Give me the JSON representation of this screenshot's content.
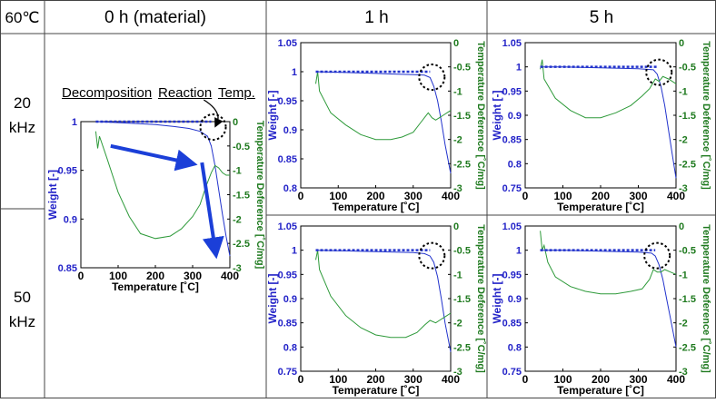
{
  "header": {
    "corner": "60℃",
    "columns": [
      "0 h (material)",
      "1 h",
      "5 h"
    ]
  },
  "rows": [
    {
      "line1": "20",
      "line2": "kHz"
    },
    {
      "line1": "50",
      "line2": "kHz"
    }
  ],
  "annotation": {
    "words": [
      "Decomposition",
      "Reaction",
      "Temp."
    ]
  },
  "colors": {
    "weight_series": "#2233cc",
    "weight_axis": "#2323c8",
    "temp_diff_series": "#2e9a3a",
    "temp_diff_axis": "#1f7a1f",
    "arrow": "#1b3fd8"
  },
  "chart_data": [
    {
      "panel": "0 h (material)",
      "type": "line",
      "xlabel": "Temperature [˚C]",
      "ylabel": "Weight [-]",
      "y2label": "Temperature Deference [˚C/mg]",
      "xlim": [
        0,
        400
      ],
      "ylim": [
        0.85,
        1.0
      ],
      "y2lim": [
        -3,
        0
      ],
      "xticks": [
        "0",
        "100",
        "200",
        "300",
        "400"
      ],
      "yticks": [
        "0.85",
        "0.9",
        "0.95",
        "1"
      ],
      "y2ticks": [
        "0",
        "-0.5",
        "-1",
        "-1.5",
        "-2",
        "-2.5",
        "-3"
      ],
      "onset_temp": 350,
      "series": [
        {
          "axis": "left",
          "x": [
            40,
            100,
            150,
            200,
            250,
            290,
            320,
            340,
            350,
            360,
            370,
            380,
            390,
            400
          ],
          "values": [
            1.0,
            0.999,
            0.998,
            0.997,
            0.995,
            0.993,
            0.99,
            0.985,
            0.975,
            0.955,
            0.93,
            0.905,
            0.882,
            0.862
          ]
        },
        {
          "axis": "right",
          "x": [
            40,
            45,
            50,
            70,
            100,
            130,
            160,
            200,
            240,
            270,
            300,
            320,
            335,
            350,
            360,
            370,
            380,
            390,
            400
          ],
          "values": [
            -0.2,
            -0.55,
            -0.3,
            -0.75,
            -1.45,
            -1.95,
            -2.3,
            -2.4,
            -2.35,
            -2.2,
            -1.95,
            -1.7,
            -1.35,
            -1.05,
            -0.9,
            -0.95,
            -1.05,
            -1.1,
            -1.1
          ]
        }
      ]
    },
    {
      "panel": "1 h, 20 kHz",
      "type": "line",
      "xlabel": "Temperature [˚C]",
      "ylabel": "Weight [-]",
      "y2label": "Temperature Deference [˚C/mg]",
      "xlim": [
        0,
        400
      ],
      "ylim": [
        0.8,
        1.05
      ],
      "y2lim": [
        -3,
        0
      ],
      "xticks": [
        "0",
        "100",
        "200",
        "300",
        "400"
      ],
      "yticks": [
        "0.8",
        "0.85",
        "0.9",
        "0.95",
        "1",
        "1.05"
      ],
      "y2ticks": [
        "0",
        "-0.5",
        "-1",
        "-1.5",
        "-2",
        "-2.5",
        "-3"
      ],
      "onset_temp": 345,
      "series": [
        {
          "axis": "left",
          "x": [
            40,
            100,
            150,
            200,
            250,
            300,
            330,
            345,
            355,
            365,
            375,
            385,
            400
          ],
          "values": [
            1.0,
            0.999,
            0.998,
            0.997,
            0.996,
            0.995,
            0.994,
            0.99,
            0.975,
            0.95,
            0.915,
            0.875,
            0.825
          ]
        },
        {
          "axis": "right",
          "x": [
            40,
            45,
            50,
            80,
            120,
            160,
            200,
            240,
            270,
            300,
            320,
            330,
            340,
            350,
            360,
            370,
            380,
            390,
            400
          ],
          "values": [
            -0.85,
            -0.6,
            -1.0,
            -1.45,
            -1.7,
            -1.9,
            -2.0,
            -2.0,
            -1.95,
            -1.85,
            -1.65,
            -1.55,
            -1.45,
            -1.55,
            -1.6,
            -1.55,
            -1.5,
            -1.45,
            -1.4
          ]
        }
      ]
    },
    {
      "panel": "5 h, 20 kHz",
      "type": "line",
      "xlabel": "Temperature [˚C]",
      "ylabel": "Weight [-]",
      "y2label": "Temperature Deference [˚C/mg]",
      "xlim": [
        0,
        400
      ],
      "ylim": [
        0.75,
        1.05
      ],
      "y2lim": [
        -3,
        0
      ],
      "xticks": [
        "0",
        "100",
        "200",
        "300",
        "400"
      ],
      "yticks": [
        "0.75",
        "0.8",
        "0.85",
        "0.9",
        "0.95",
        "1",
        "1.05"
      ],
      "y2ticks": [
        "0",
        "-0.5",
        "-1",
        "-1.5",
        "-2",
        "-2.5",
        "-3"
      ],
      "onset_temp": 350,
      "series": [
        {
          "axis": "left",
          "x": [
            40,
            100,
            150,
            200,
            250,
            300,
            340,
            350,
            360,
            370,
            380,
            390,
            400
          ],
          "values": [
            1.0,
            1.0,
            0.999,
            0.998,
            0.997,
            0.996,
            0.994,
            0.985,
            0.96,
            0.92,
            0.87,
            0.82,
            0.77
          ]
        },
        {
          "axis": "right",
          "x": [
            40,
            45,
            50,
            80,
            120,
            160,
            200,
            240,
            280,
            310,
            330,
            345,
            355,
            365,
            380,
            400
          ],
          "values": [
            -0.55,
            -0.35,
            -0.75,
            -1.15,
            -1.4,
            -1.55,
            -1.55,
            -1.45,
            -1.3,
            -1.1,
            -0.95,
            -0.75,
            -0.8,
            -0.7,
            -0.75,
            -0.85
          ]
        }
      ]
    },
    {
      "panel": "1 h, 50 kHz",
      "type": "line",
      "xlabel": "Temperature [˚C]",
      "ylabel": "Weight [-]",
      "y2label": "Temperature Deference [˚C/mg]",
      "xlim": [
        0,
        400
      ],
      "ylim": [
        0.75,
        1.05
      ],
      "y2lim": [
        -3,
        0
      ],
      "xticks": [
        "0",
        "100",
        "200",
        "300",
        "400"
      ],
      "yticks": [
        "0.75",
        "0.8",
        "0.85",
        "0.9",
        "0.95",
        "1",
        "1.05"
      ],
      "y2ticks": [
        "0",
        "-0.5",
        "-1",
        "-1.5",
        "-2",
        "-2.5",
        "-3"
      ],
      "onset_temp": 345,
      "series": [
        {
          "axis": "left",
          "x": [
            40,
            100,
            150,
            200,
            250,
            300,
            330,
            345,
            355,
            365,
            375,
            385,
            400
          ],
          "values": [
            1.0,
            0.999,
            0.998,
            0.997,
            0.996,
            0.995,
            0.993,
            0.988,
            0.975,
            0.945,
            0.9,
            0.85,
            0.79
          ]
        },
        {
          "axis": "right",
          "x": [
            40,
            45,
            50,
            80,
            120,
            160,
            200,
            240,
            280,
            310,
            330,
            345,
            360,
            370,
            380,
            390,
            400
          ],
          "values": [
            -0.7,
            -0.5,
            -0.9,
            -1.45,
            -1.85,
            -2.1,
            -2.25,
            -2.3,
            -2.3,
            -2.2,
            -2.05,
            -1.95,
            -2.0,
            -1.95,
            -1.9,
            -1.85,
            -1.8
          ]
        }
      ]
    },
    {
      "panel": "5 h, 50 kHz",
      "type": "line",
      "xlabel": "Temperature [˚C]",
      "ylabel": "Weight [-]",
      "y2label": "Temperature Deference [˚C/mg]",
      "xlim": [
        0,
        400
      ],
      "ylim": [
        0.75,
        1.05
      ],
      "y2lim": [
        -3,
        0
      ],
      "xticks": [
        "0",
        "100",
        "200",
        "300",
        "400"
      ],
      "yticks": [
        "0.75",
        "0.8",
        "0.85",
        "0.9",
        "0.95",
        "1",
        "1.05"
      ],
      "y2ticks": [
        "0",
        "-0.5",
        "-1",
        "-1.5",
        "-2",
        "-2.5",
        "-3"
      ],
      "onset_temp": 345,
      "series": [
        {
          "axis": "left",
          "x": [
            40,
            100,
            150,
            200,
            250,
            300,
            335,
            345,
            355,
            365,
            375,
            385,
            400
          ],
          "values": [
            1.0,
            1.0,
            0.999,
            0.998,
            0.997,
            0.996,
            0.994,
            0.988,
            0.97,
            0.94,
            0.9,
            0.86,
            0.8
          ]
        },
        {
          "axis": "right",
          "x": [
            40,
            45,
            50,
            60,
            80,
            120,
            160,
            200,
            240,
            280,
            310,
            330,
            340,
            350,
            360,
            370,
            385,
            400
          ],
          "values": [
            -0.1,
            -0.5,
            -0.4,
            -0.75,
            -1.05,
            -1.25,
            -1.35,
            -1.4,
            -1.4,
            -1.35,
            -1.3,
            -1.1,
            -0.9,
            -0.95,
            -0.95,
            -0.9,
            -0.95,
            -1.0
          ]
        }
      ]
    }
  ]
}
